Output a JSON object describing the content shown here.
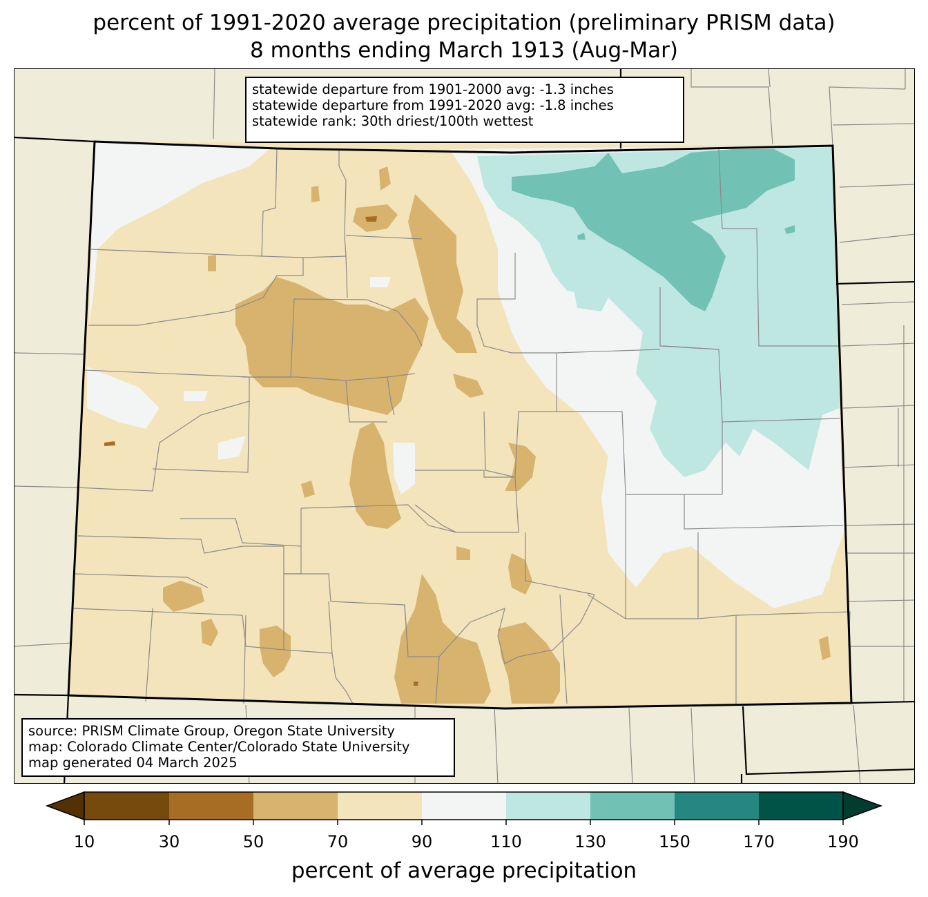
{
  "title": {
    "line1": "percent of 1991-2020 average precipitation (preliminary PRISM data)",
    "line2": "8 months ending March 1913 (Aug-Mar)"
  },
  "stats_box": [
    "statewide departure from 1901-2000 avg: -1.3 inches",
    "statewide departure from 1991-2020 avg: -1.8 inches",
    "statewide rank: 30th driest/100th wettest"
  ],
  "source_box": [
    "source: PRISM Climate Group, Oregon State University",
    "map: Colorado Climate Center/Colorado State University",
    "map generated 04 March 2025"
  ],
  "colorbar": {
    "label": "percent of average precipitation",
    "ticks": [
      "10",
      "30",
      "50",
      "70",
      "90",
      "110",
      "130",
      "150",
      "170",
      "190"
    ],
    "colors": {
      "under": "#543005",
      "10-30": "#754a0c",
      "30-50": "#a86d24",
      "50-70": "#d7b36d",
      "70-90": "#f3e4bc",
      "90-110": "#f3f5f4",
      "110-130": "#bfe7e2",
      "130-150": "#71c1b5",
      "150-170": "#258880",
      "170-190": "#005347",
      "over": "#003c30"
    }
  },
  "map_colors": {
    "background": "#efedda",
    "state_border": "#000000",
    "county_lines": "#888888"
  }
}
